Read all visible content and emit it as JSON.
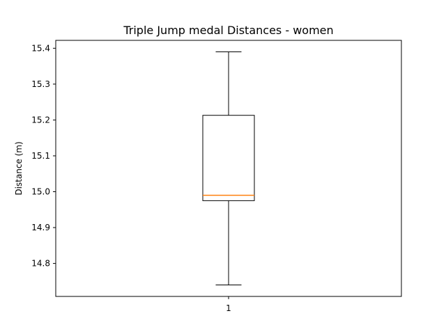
{
  "chart_data": {
    "type": "boxplot",
    "title": "Triple Jump medal Distances - women",
    "xlabel": "",
    "ylabel": "Distance (m)",
    "categories": [
      "1"
    ],
    "series": [
      {
        "box": {
          "whisker_low": 14.74,
          "q1": 14.975,
          "median": 14.99,
          "q3": 15.213,
          "whisker_high": 15.39
        }
      }
    ],
    "ylim": [
      14.708,
      15.422
    ],
    "yticks": [
      14.8,
      14.9,
      15.0,
      15.1,
      15.2,
      15.3,
      15.4
    ],
    "ytick_labels": [
      "14.8",
      "14.9",
      "15.0",
      "15.1",
      "15.2",
      "15.3",
      "15.4"
    ],
    "grid": false,
    "colors": {
      "box": "#000000",
      "median": "#ff7f0e",
      "axes": "#000000"
    }
  }
}
